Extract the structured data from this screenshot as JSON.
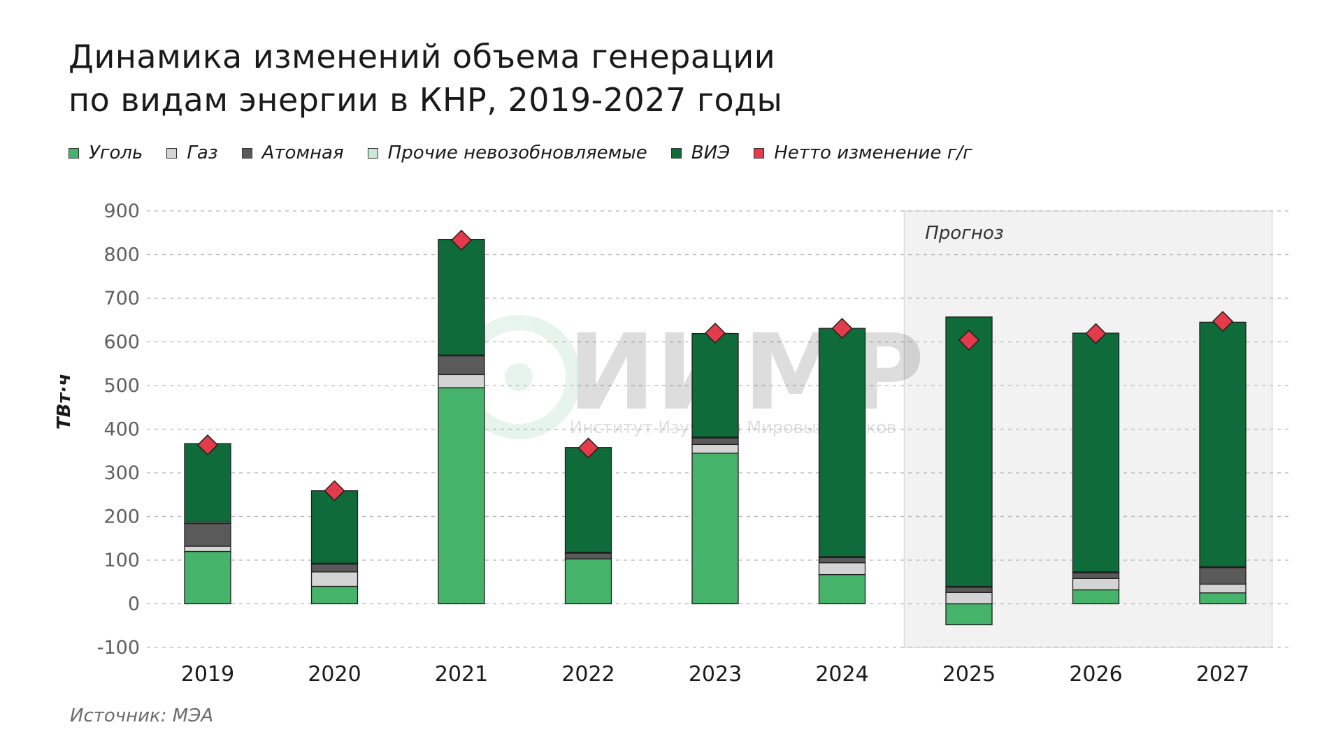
{
  "title": {
    "line1": "Динамика изменений объема генерации",
    "line2": "по видам энергии в КНР, 2019-2027 годы"
  },
  "legend": [
    {
      "label": "Уголь",
      "color": "#46b36a"
    },
    {
      "label": "Газ",
      "color": "#d4d4d4"
    },
    {
      "label": "Атомная",
      "color": "#5a5a5a"
    },
    {
      "label": "Прочие невозобновляемые",
      "color": "#c7ead8"
    },
    {
      "label": "ВИЭ",
      "color": "#0f6b3a"
    },
    {
      "label": "Нетто изменение г/г",
      "color": "#e33b4a"
    }
  ],
  "source": "Источник: МЭА",
  "watermark": {
    "brand": "ИИМР",
    "subtitle": "Институт Изучения Мировых Рынков"
  },
  "chart_data": {
    "type": "bar",
    "stacked": true,
    "ylabel": "ТВт·ч",
    "ylim": [
      -100,
      900
    ],
    "yticks": [
      -100,
      0,
      100,
      200,
      300,
      400,
      500,
      600,
      700,
      800,
      900
    ],
    "grid": true,
    "forecast_label": "Прогноз",
    "forecast_categories": [
      "2025",
      "2026",
      "2027"
    ],
    "categories": [
      "2019",
      "2020",
      "2021",
      "2022",
      "2023",
      "2024",
      "2025",
      "2026",
      "2027"
    ],
    "series": [
      {
        "name": "Уголь",
        "color": "#46b36a",
        "values": [
          120,
          40,
          495,
          103,
          345,
          67,
          -48,
          32,
          25
        ]
      },
      {
        "name": "Газ",
        "color": "#d4d4d4",
        "values": [
          12,
          33,
          30,
          0,
          20,
          27,
          26,
          26,
          20
        ]
      },
      {
        "name": "Атомная",
        "color": "#5a5a5a",
        "values": [
          52,
          18,
          43,
          13,
          15,
          12,
          12,
          13,
          38
        ]
      },
      {
        "name": "Прочие невозобновляемые",
        "color": "#c7ead8",
        "values": [
          3,
          2,
          2,
          2,
          2,
          2,
          2,
          2,
          2
        ]
      },
      {
        "name": "ВИЭ",
        "color": "#0f6b3a",
        "values": [
          180,
          166,
          265,
          240,
          237,
          523,
          617,
          547,
          560
        ]
      }
    ],
    "net_change": {
      "name": "Нетто изменение г/г",
      "color": "#e33b4a",
      "values": [
        364,
        259,
        833,
        357,
        620,
        631,
        604,
        619,
        647
      ]
    }
  }
}
